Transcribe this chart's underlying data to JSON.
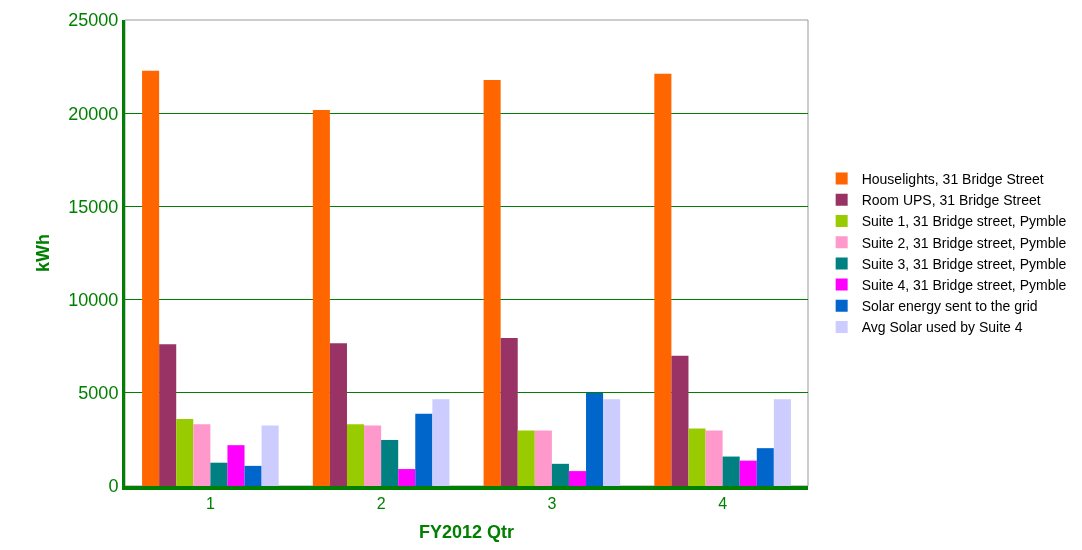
{
  "chart_data": {
    "type": "bar",
    "xlabel": "FY2012 Qtr",
    "ylabel": "kWh",
    "categories": [
      "1",
      "2",
      "3",
      "4"
    ],
    "ylim": [
      0,
      25000
    ],
    "yticks": [
      0,
      5000,
      10000,
      15000,
      20000,
      25000
    ],
    "grid": "y",
    "legend": "right",
    "series": [
      {
        "name": "Houselights, 31 Bridge Street",
        "color": "#ff6600",
        "values": [
          22280,
          20170,
          21780,
          22110
        ]
      },
      {
        "name": "Room UPS, 31 Bridge Street",
        "color": "#993366",
        "values": [
          7600,
          7660,
          7940,
          6990
        ]
      },
      {
        "name": "Suite 1, 31 Bridge street, Pymble",
        "color": "#99cc00",
        "values": [
          3590,
          3310,
          2980,
          3090
        ]
      },
      {
        "name": "Suite 2, 31 Bridge street, Pymble",
        "color": "#ff99cc",
        "values": [
          3310,
          3250,
          2980,
          2980
        ]
      },
      {
        "name": "Suite 3, 31 Bridge street, Pymble",
        "color": "#008080",
        "values": [
          1250,
          2470,
          1190,
          1580
        ]
      },
      {
        "name": "Suite 4, 31 Bridge street, Pymble",
        "color": "#ff00ff",
        "values": [
          2190,
          910,
          800,
          1360
        ]
      },
      {
        "name": "Solar energy sent to the grid",
        "color": "#0066cc",
        "values": [
          1080,
          3870,
          4985,
          2030
        ]
      },
      {
        "name": "Avg Solar used by Suite 4",
        "color": "#ccccff",
        "values": [
          3250,
          4650,
          4650,
          4650
        ]
      }
    ]
  }
}
